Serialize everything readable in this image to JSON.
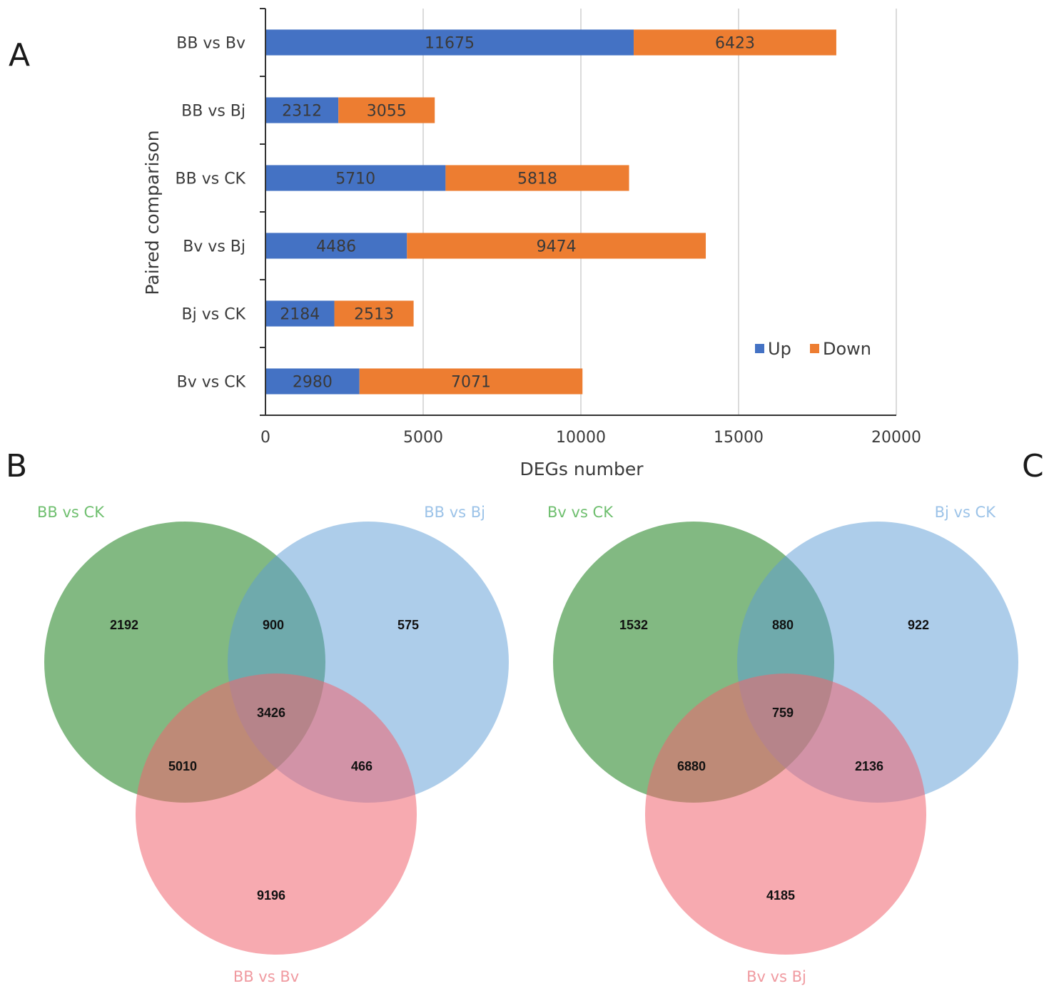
{
  "panels": {
    "a": "A",
    "b": "B",
    "c": "C"
  },
  "colors": {
    "up": "#4472C4",
    "down": "#ED7D31",
    "gridline": "#cfcfcf",
    "axis": "#333333",
    "venn_green": "#2E8B2E",
    "venn_blue": "#5B9BD5",
    "venn_red": "#F0656F",
    "venn_green_label": "#6fbf6f",
    "venn_blue_label": "#9cc3e8",
    "venn_red_label": "#f09aa0"
  },
  "chart_data": [
    {
      "type": "bar",
      "orientation": "horizontal",
      "stacked": true,
      "categories": [
        "BB vs Bv",
        "BB vs Bj",
        "BB vs CK",
        "Bv vs Bj",
        "Bj vs CK",
        "Bv vs CK"
      ],
      "series": [
        {
          "name": "Up",
          "values": [
            11675,
            2312,
            5710,
            4486,
            2184,
            2980
          ]
        },
        {
          "name": "Down",
          "values": [
            6423,
            3055,
            5818,
            9474,
            2513,
            7071
          ]
        }
      ],
      "xlabel": "DEGs number",
      "ylabel": "Paired comparison",
      "xlim": [
        0,
        20000
      ],
      "xticks": [
        0,
        5000,
        10000,
        15000,
        20000
      ],
      "grid": true,
      "legend_position": "bottom-right"
    },
    {
      "type": "venn",
      "sets": [
        "BB vs CK",
        "BB vs Bj",
        "BB vs Bv"
      ],
      "regions": {
        "only_1": "2192",
        "only_2": "575",
        "only_3": "9196",
        "1_2": "900",
        "1_3": "5010",
        "2_3": "466",
        "all": "3426"
      }
    },
    {
      "type": "venn",
      "sets": [
        "Bv vs CK",
        "Bj vs CK",
        "Bv vs Bj"
      ],
      "regions": {
        "only_1": "1532",
        "only_2": "922",
        "only_3": "4185",
        "1_2": "880",
        "1_3": "6880",
        "2_3": "2136",
        "all": "759"
      }
    }
  ]
}
